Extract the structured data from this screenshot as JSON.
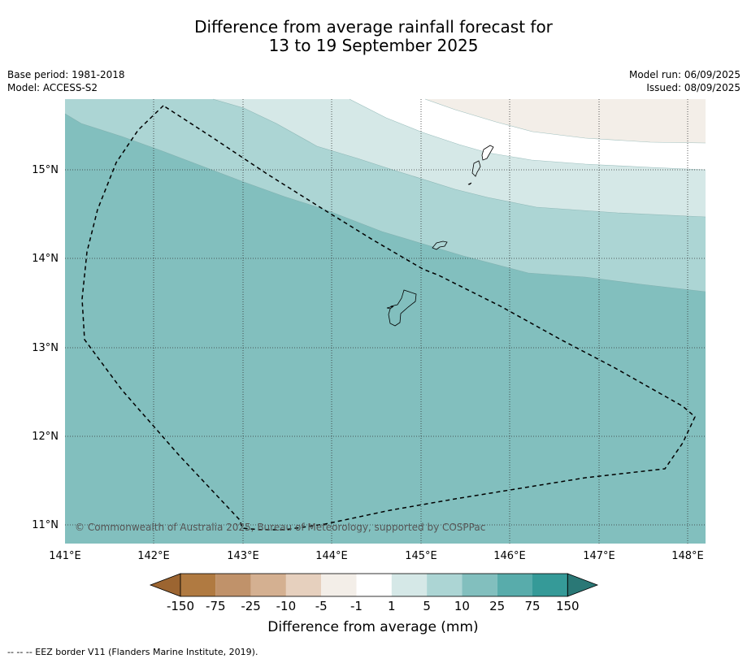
{
  "title_line1": "Difference from average rainfall forecast for",
  "title_line2": "13 to 19 September 2025",
  "base_period": "Base period: 1981-2018",
  "model": "Model: ACCESS-S2",
  "model_run": "Model run: 06/09/2025",
  "issued": "Issued: 08/09/2025",
  "copyright": "© Commonwealth of Australia 2025, Bureau of Meteorology, supported by COSPPac",
  "longitude_labels": [
    "141°E",
    "142°E",
    "143°E",
    "144°E",
    "145°E",
    "146°E",
    "147°E",
    "148°E"
  ],
  "latitude_labels": [
    "15°N",
    "14°N",
    "13°N",
    "12°N",
    "11°N"
  ],
  "colorbar": {
    "title": "Difference from average (mm)",
    "tick_labels": [
      "-150",
      "-75",
      "-25",
      "-10",
      "-5",
      "-1",
      "1",
      "5",
      "10",
      "25",
      "75",
      "150"
    ],
    "colors": [
      "#9c6531",
      "#b07a41",
      "#c0926a",
      "#d4b091",
      "#e6d0be",
      "#f3eee8",
      "#ffffff",
      "#d5e8e7",
      "#acd5d4",
      "#82bfbe",
      "#58acab",
      "#359a98",
      "#2a7876"
    ]
  },
  "footnote": "--  --  -- EEZ border V11 (Flanders Marine Institute, 2019).",
  "map_fill_colors": {
    "band_10_25": "#82bfbe",
    "band_5_10": "#acd5d4",
    "band_1_5": "#d5e8e7",
    "band_neutral": "#ffffff",
    "band_dry": "#f3eee8"
  }
}
